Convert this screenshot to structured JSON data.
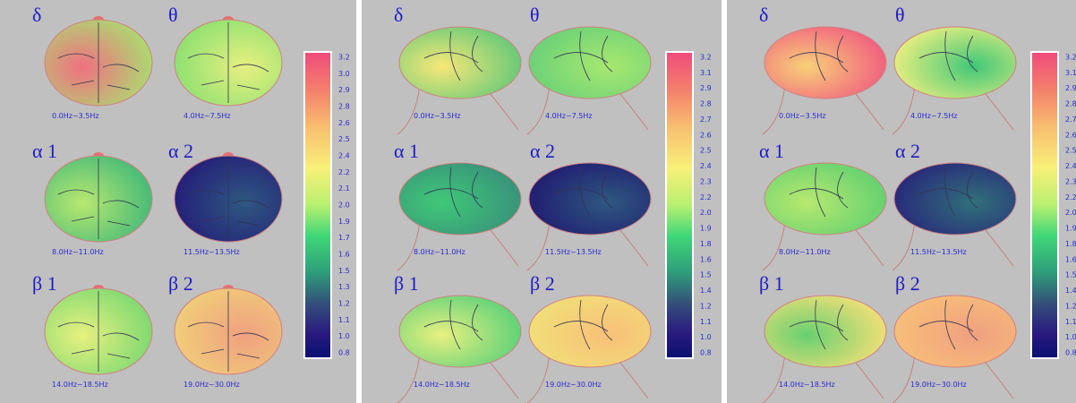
{
  "panels": [
    {
      "maps": [
        {
          "symbol": "δ",
          "range": "0.0Hz~3.5Hz"
        },
        {
          "symbol": "θ",
          "range": "4.0Hz~7.5Hz"
        },
        {
          "symbol": "α 1",
          "range": "8.0Hz~11.0Hz"
        },
        {
          "symbol": "α 2",
          "range": "11.5Hz~13.5Hz"
        },
        {
          "symbol": "β 1",
          "range": "14.0Hz~18.5Hz"
        },
        {
          "symbol": "β 2",
          "range": "19.0Hz~30.0Hz"
        }
      ],
      "scale": [
        "3.2",
        "3.0",
        "2.9",
        "2.8",
        "2.6",
        "2.5",
        "2.4",
        "2.2",
        "2.1",
        "2.0",
        "1.9",
        "1.7",
        "1.6",
        "1.5",
        "1.3",
        "1.2",
        "1.1",
        "1.0",
        "0.8"
      ]
    },
    {
      "maps": [
        {
          "symbol": "δ",
          "range": "0.0Hz~3.5Hz"
        },
        {
          "symbol": "θ",
          "range": "4.0Hz~7.5Hz"
        },
        {
          "symbol": "α 1",
          "range": "8.0Hz~11.0Hz"
        },
        {
          "symbol": "α 2",
          "range": "11.5Hz~13.5Hz"
        },
        {
          "symbol": "β 1",
          "range": "14.0Hz~18.5Hz"
        },
        {
          "symbol": "β 2",
          "range": "19.0Hz~30.0Hz"
        }
      ],
      "scale": [
        "3.2",
        "3.1",
        "2.9",
        "2.8",
        "2.7",
        "2.6",
        "2.5",
        "2.4",
        "2.3",
        "2.2",
        "2.0",
        "1.9",
        "1.8",
        "1.6",
        "1.5",
        "1.4",
        "1.2",
        "1.1",
        "1.0",
        "0.8"
      ]
    },
    {
      "maps": [
        {
          "symbol": "δ",
          "range": "0.0Hz~3.5Hz"
        },
        {
          "symbol": "θ",
          "range": "4.0Hz~7.5Hz"
        },
        {
          "symbol": "α 1",
          "range": "8.0Hz~11.0Hz"
        },
        {
          "symbol": "α 2",
          "range": "11.5Hz~13.5Hz"
        },
        {
          "symbol": "β 1",
          "range": "14.0Hz~18.5Hz"
        },
        {
          "symbol": "β 2",
          "range": "19.0Hz~30.0Hz"
        }
      ],
      "scale": [
        "3.2",
        "3.1",
        "2.9",
        "2.8",
        "2.7",
        "2.6",
        "2.5",
        "2.4",
        "2.3",
        "2.2",
        "2.0",
        "1.9",
        "1.8",
        "1.6",
        "1.5",
        "1.4",
        "1.2",
        "1.1",
        "1.0",
        "0.8"
      ]
    }
  ]
}
